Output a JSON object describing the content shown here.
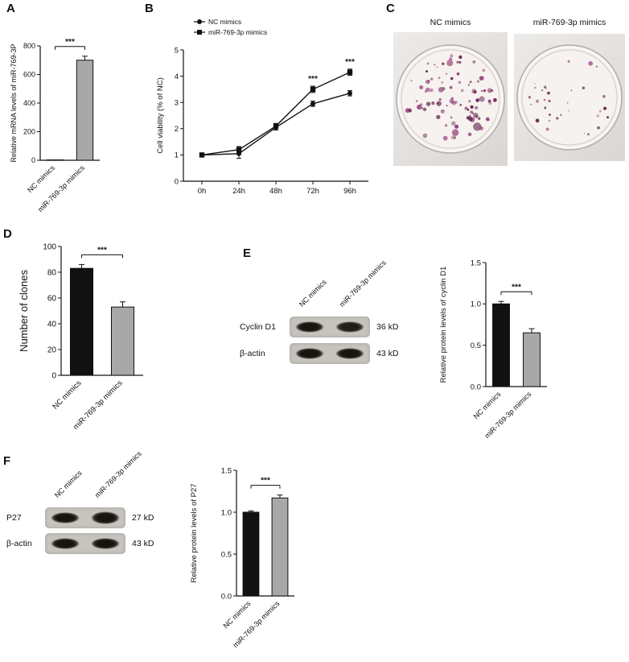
{
  "panels": {
    "A": {
      "label": "A",
      "chart": {
        "type": "bar",
        "ylabel": "Relative mRNA levels of miR-769-3P",
        "categories": [
          "NC mimics",
          "miR-769-3p mimics"
        ],
        "values": [
          1,
          700
        ],
        "errors": [
          0,
          28
        ],
        "colors": [
          "#111111",
          "#a8a8a8"
        ],
        "ylim": [
          0,
          800
        ],
        "ytick_vals": [
          0,
          200,
          400,
          600,
          800
        ],
        "ytick_labels": [
          "0",
          "200",
          "400",
          "600",
          "800"
        ],
        "sig": "***"
      }
    },
    "B": {
      "label": "B",
      "chart": {
        "type": "line",
        "ylabel": "Cell viability (% of NC)",
        "x": [
          "0h",
          "24h",
          "48h",
          "72h",
          "96h"
        ],
        "series": [
          {
            "name": "NC mimics",
            "marker": "circle",
            "color": "#111111",
            "values": [
              1.0,
              1.05,
              2.05,
              2.95,
              3.35
            ],
            "errors": [
              0.05,
              0.18,
              0.1,
              0.1,
              0.1
            ]
          },
          {
            "name": "miR-769-3p mimics",
            "marker": "square",
            "color": "#111111",
            "values": [
              1.0,
              1.2,
              2.1,
              3.5,
              4.15
            ],
            "errors": [
              0.05,
              0.12,
              0.1,
              0.12,
              0.12
            ]
          }
        ],
        "ylim": [
          0,
          5
        ],
        "ytick_vals": [
          0,
          1,
          2,
          3,
          4,
          5
        ],
        "ytick_labels": [
          "0",
          "1",
          "2",
          "3",
          "4",
          "5"
        ],
        "annotations": [
          {
            "index": 3,
            "text": "***"
          },
          {
            "index": 4,
            "text": "***"
          }
        ]
      }
    },
    "C": {
      "label": "C",
      "plates": [
        {
          "title": "NC mimics",
          "colonies": 95,
          "dot_min": 1.0,
          "dot_max": 3.2,
          "seed": 7,
          "colony_colors": [
            "#6d1f54",
            "#8e3570",
            "#5a1744",
            "#a85f97"
          ]
        },
        {
          "title": "miR-769-3p mimics",
          "colonies": 33,
          "dot_min": 0.6,
          "dot_max": 2.0,
          "seed": 23,
          "colony_colors": [
            "#6d1f54",
            "#8e3570",
            "#5a1744",
            "#a85f97"
          ]
        }
      ]
    },
    "D": {
      "label": "D",
      "chart": {
        "type": "bar",
        "ylabel": "Number of clones",
        "categories": [
          "NC mimics",
          "miR-769-3p mimics"
        ],
        "values": [
          83,
          53
        ],
        "errors": [
          3,
          4
        ],
        "colors": [
          "#111111",
          "#a8a8a8"
        ],
        "ylim": [
          0,
          100
        ],
        "ytick_vals": [
          0,
          20,
          40,
          60,
          80,
          100
        ],
        "ytick_labels": [
          "0",
          "20",
          "40",
          "60",
          "80",
          "100"
        ],
        "sig": "***"
      }
    },
    "E": {
      "label": "E",
      "blot": {
        "lanes": [
          "NC mimics",
          "miR-769-3p mimics"
        ],
        "rows": [
          {
            "protein": "Cyclin D1",
            "size": "36 kD",
            "bands": [
              1.0,
              0.85
            ]
          },
          {
            "protein": "β-actin",
            "size": "43 kD",
            "bands": [
              1.0,
              1.0
            ]
          }
        ]
      },
      "chart": {
        "type": "bar",
        "ylabel": "Relative protein levels of cyclin D1",
        "categories": [
          "NC mimics",
          "miR-769-3p mimics"
        ],
        "values": [
          1.0,
          0.65
        ],
        "errors": [
          0.03,
          0.05
        ],
        "colors": [
          "#111111",
          "#a8a8a8"
        ],
        "ylim": [
          0,
          1.5
        ],
        "ytick_vals": [
          0,
          0.5,
          1.0,
          1.5
        ],
        "ytick_labels": [
          "0.0",
          "0.5",
          "1.0",
          "1.5"
        ],
        "sig": "***"
      }
    },
    "F": {
      "label": "F",
      "blot": {
        "lanes": [
          "NC mimics",
          "miR-769-3p mimics"
        ],
        "rows": [
          {
            "protein": "P27",
            "size": "27 kD",
            "bands": [
              1.0,
              1.15
            ]
          },
          {
            "protein": "β-actin",
            "size": "43 kD",
            "bands": [
              1.0,
              1.0
            ]
          }
        ]
      },
      "chart": {
        "type": "bar",
        "ylabel": "Relative protein levels of P27",
        "categories": [
          "NC mimics",
          "miR-769-3p mimics"
        ],
        "values": [
          1.0,
          1.17
        ],
        "errors": [
          0.015,
          0.035
        ],
        "colors": [
          "#111111",
          "#a8a8a8"
        ],
        "ylim": [
          0,
          1.5
        ],
        "ytick_vals": [
          0,
          0.5,
          1.0,
          1.5
        ],
        "ytick_labels": [
          "0.0",
          "0.5",
          "1.0",
          "1.5"
        ],
        "sig": "***"
      }
    }
  }
}
